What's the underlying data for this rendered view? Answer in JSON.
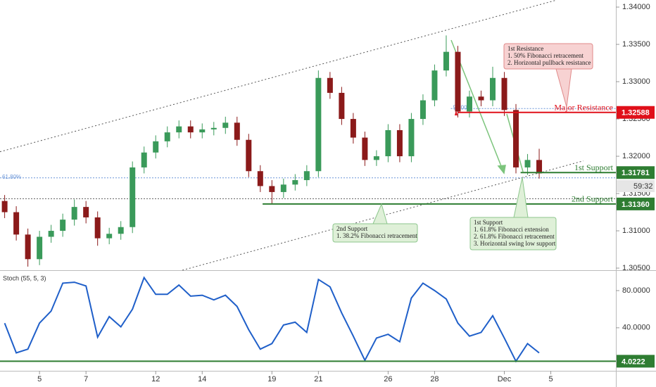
{
  "chart_data": [
    {
      "type": "candlestick",
      "x": [
        -1.5,
        -1,
        -0.5,
        0,
        0.5,
        1,
        1.5,
        2,
        2.5,
        3,
        3.5,
        4,
        4.5,
        5,
        5.5,
        6,
        6.5,
        7,
        7.5,
        8,
        8.5,
        9,
        9.5,
        10,
        10.5,
        11,
        11.5,
        12,
        12.5,
        13,
        13.5,
        14,
        14.5,
        15,
        15.5,
        16,
        16.5,
        17,
        17.5,
        18,
        18.5,
        19,
        19.5,
        20,
        20.5,
        21,
        21.5
      ],
      "open": [
        1.314,
        1.3125,
        1.3095,
        1.3062,
        1.3092,
        1.31,
        1.3115,
        1.3132,
        1.3118,
        1.309,
        1.3096,
        1.3105,
        1.3185,
        1.3205,
        1.322,
        1.3232,
        1.324,
        1.3232,
        1.3236,
        1.3238,
        1.3245,
        1.3222,
        1.318,
        1.316,
        1.3152,
        1.3162,
        1.3168,
        1.318,
        1.3305,
        1.3285,
        1.325,
        1.3225,
        1.3195,
        1.32,
        1.3235,
        1.32,
        1.325,
        1.3275,
        1.3315,
        1.334,
        1.326,
        1.328,
        1.3275,
        1.3305,
        1.3262,
        1.3185,
        1.3195
      ],
      "high": [
        1.3148,
        1.3133,
        1.3103,
        1.31,
        1.3108,
        1.3123,
        1.3142,
        1.314,
        1.3126,
        1.3104,
        1.3113,
        1.3193,
        1.3213,
        1.3228,
        1.324,
        1.3248,
        1.3248,
        1.3244,
        1.3246,
        1.3253,
        1.3253,
        1.323,
        1.3188,
        1.3168,
        1.317,
        1.3176,
        1.3188,
        1.3315,
        1.3313,
        1.3293,
        1.3258,
        1.3233,
        1.3208,
        1.3243,
        1.3243,
        1.3258,
        1.3283,
        1.3323,
        1.3362,
        1.3348,
        1.3288,
        1.3288,
        1.332,
        1.3313,
        1.327,
        1.3203,
        1.321
      ],
      "low": [
        1.3117,
        1.3087,
        1.3052,
        1.3054,
        1.3084,
        1.3092,
        1.3107,
        1.311,
        1.308,
        1.3082,
        1.3088,
        1.3097,
        1.3177,
        1.3197,
        1.3212,
        1.3224,
        1.3224,
        1.3224,
        1.3228,
        1.323,
        1.3214,
        1.3172,
        1.3152,
        1.3136,
        1.3144,
        1.3154,
        1.316,
        1.3172,
        1.3277,
        1.3242,
        1.3217,
        1.3187,
        1.3187,
        1.3192,
        1.3192,
        1.3192,
        1.3242,
        1.3267,
        1.3307,
        1.3252,
        1.3252,
        1.3267,
        1.3267,
        1.3254,
        1.3177,
        1.3175,
        1.317
      ],
      "close": [
        1.3125,
        1.3095,
        1.3062,
        1.3092,
        1.31,
        1.3115,
        1.3132,
        1.3118,
        1.309,
        1.3096,
        1.3105,
        1.3185,
        1.3205,
        1.322,
        1.3232,
        1.324,
        1.3232,
        1.3236,
        1.3238,
        1.3245,
        1.3222,
        1.318,
        1.316,
        1.3152,
        1.3162,
        1.3168,
        1.318,
        1.3305,
        1.3285,
        1.325,
        1.3225,
        1.3195,
        1.32,
        1.3235,
        1.32,
        1.325,
        1.3275,
        1.3315,
        1.334,
        1.326,
        1.328,
        1.3275,
        1.3305,
        1.3262,
        1.3185,
        1.3195,
        1.3177
      ],
      "up_color": "#3a9a5a",
      "down_color": "#8b1a1a",
      "xlim": [
        -1.7,
        24.8
      ],
      "ylim": [
        1.30472,
        1.34095
      ],
      "yticks": [
        {
          "value": 1.34,
          "label": "1.34000"
        },
        {
          "value": 1.335,
          "label": "1.33500"
        },
        {
          "value": 1.33,
          "label": "1.33000"
        },
        {
          "value": 1.325,
          "label": "1.32500"
        },
        {
          "value": 1.32,
          "label": "1.32000"
        },
        {
          "value": 1.315,
          "label": "1.31500"
        },
        {
          "value": 1.31,
          "label": "1.31000"
        },
        {
          "value": 1.305,
          "label": "1.30500"
        }
      ],
      "levels": [
        {
          "name": "Major Resistance",
          "value": 1.32588,
          "start": 18,
          "color": "#e0101a"
        },
        {
          "name": "1st Support",
          "value": 1.31781,
          "start": 20.7,
          "color": "#2e7d32"
        },
        {
          "name": "2nd Support",
          "value": 1.3136,
          "value_label": "1.31360",
          "start": 9.6,
          "color": "#2e7d32"
        }
      ],
      "fib_levels": [
        {
          "label": "61.80%",
          "value": 1.3171,
          "start": -1.7,
          "color": "#6a95d8"
        },
        {
          "label": "50.00%",
          "value": 1.3264,
          "start": 17.7,
          "color": "#6a95d8"
        },
        {
          "value": 1.3143,
          "start": -1.7,
          "color": "#666666"
        }
      ],
      "trendlines": [
        {
          "x": [
            -1.7,
            22.2
          ],
          "y": [
            1.3206,
            1.3409
          ]
        },
        {
          "x": [
            6.15,
            23.4
          ],
          "y": [
            1.30472,
            1.31938
          ]
        }
      ],
      "countdown": "59:32",
      "annotations": [
        {
          "lines": [
            "1st Resistance",
            "1. 50% Fibonacci retracement",
            "2. Horizontal pullback resistance"
          ]
        },
        {
          "lines": [
            "2nd Support",
            "1. 38.2% Fibonacci retracement"
          ]
        },
        {
          "lines": [
            "1st Support",
            "1. 61.8% Fibonacci extension",
            "2. 61.8% Fibonacci retracement",
            "3. Horizontal swing low support"
          ]
        }
      ]
    },
    {
      "type": "line",
      "title": "Stoch (55, 5, 3)",
      "x": [
        -1.5,
        -1,
        -0.5,
        0,
        0.5,
        1,
        1.5,
        2,
        2.5,
        3,
        3.5,
        4,
        4.5,
        5,
        5.5,
        6,
        6.5,
        7,
        7.5,
        8,
        8.5,
        9,
        9.5,
        10,
        10.5,
        11,
        11.5,
        12,
        12.5,
        13,
        13.5,
        14,
        14.5,
        15,
        15.5,
        16,
        16.5,
        17,
        17.5,
        18,
        18.5,
        19,
        19.5,
        20,
        20.5,
        21,
        21.5
      ],
      "series": [
        {
          "color": "#1f5fc9",
          "values": [
            45,
            13,
            17,
            45,
            58,
            88,
            89,
            85,
            30,
            52,
            41,
            60,
            94,
            76,
            76,
            86,
            74,
            75,
            70,
            75,
            63,
            38,
            17,
            23,
            43,
            46,
            35,
            92,
            84,
            56,
            31,
            5,
            29,
            33,
            25,
            72,
            88,
            80,
            71,
            45,
            31,
            35,
            53,
            29,
            4,
            23,
            13
          ]
        }
      ],
      "levels": [
        {
          "value": 4.0222,
          "color": "#2e7d32"
        }
      ],
      "xlim": [
        -1.7,
        24.8
      ],
      "ylim": [
        -6.3,
        101.2
      ],
      "yticks": [
        {
          "value": 80,
          "label": "80.0000"
        },
        {
          "value": 40,
          "label": "40.0000"
        }
      ],
      "xticks": [
        {
          "value": 0,
          "label": "5"
        },
        {
          "value": 2,
          "label": "7"
        },
        {
          "value": 5,
          "label": "12"
        },
        {
          "value": 7,
          "label": "14"
        },
        {
          "value": 10,
          "label": "19"
        },
        {
          "value": 12,
          "label": "21"
        },
        {
          "value": 15,
          "label": "26"
        },
        {
          "value": 17,
          "label": "28"
        },
        {
          "value": 20,
          "label": "Dec"
        },
        {
          "value": 22,
          "label": "5"
        }
      ]
    }
  ]
}
